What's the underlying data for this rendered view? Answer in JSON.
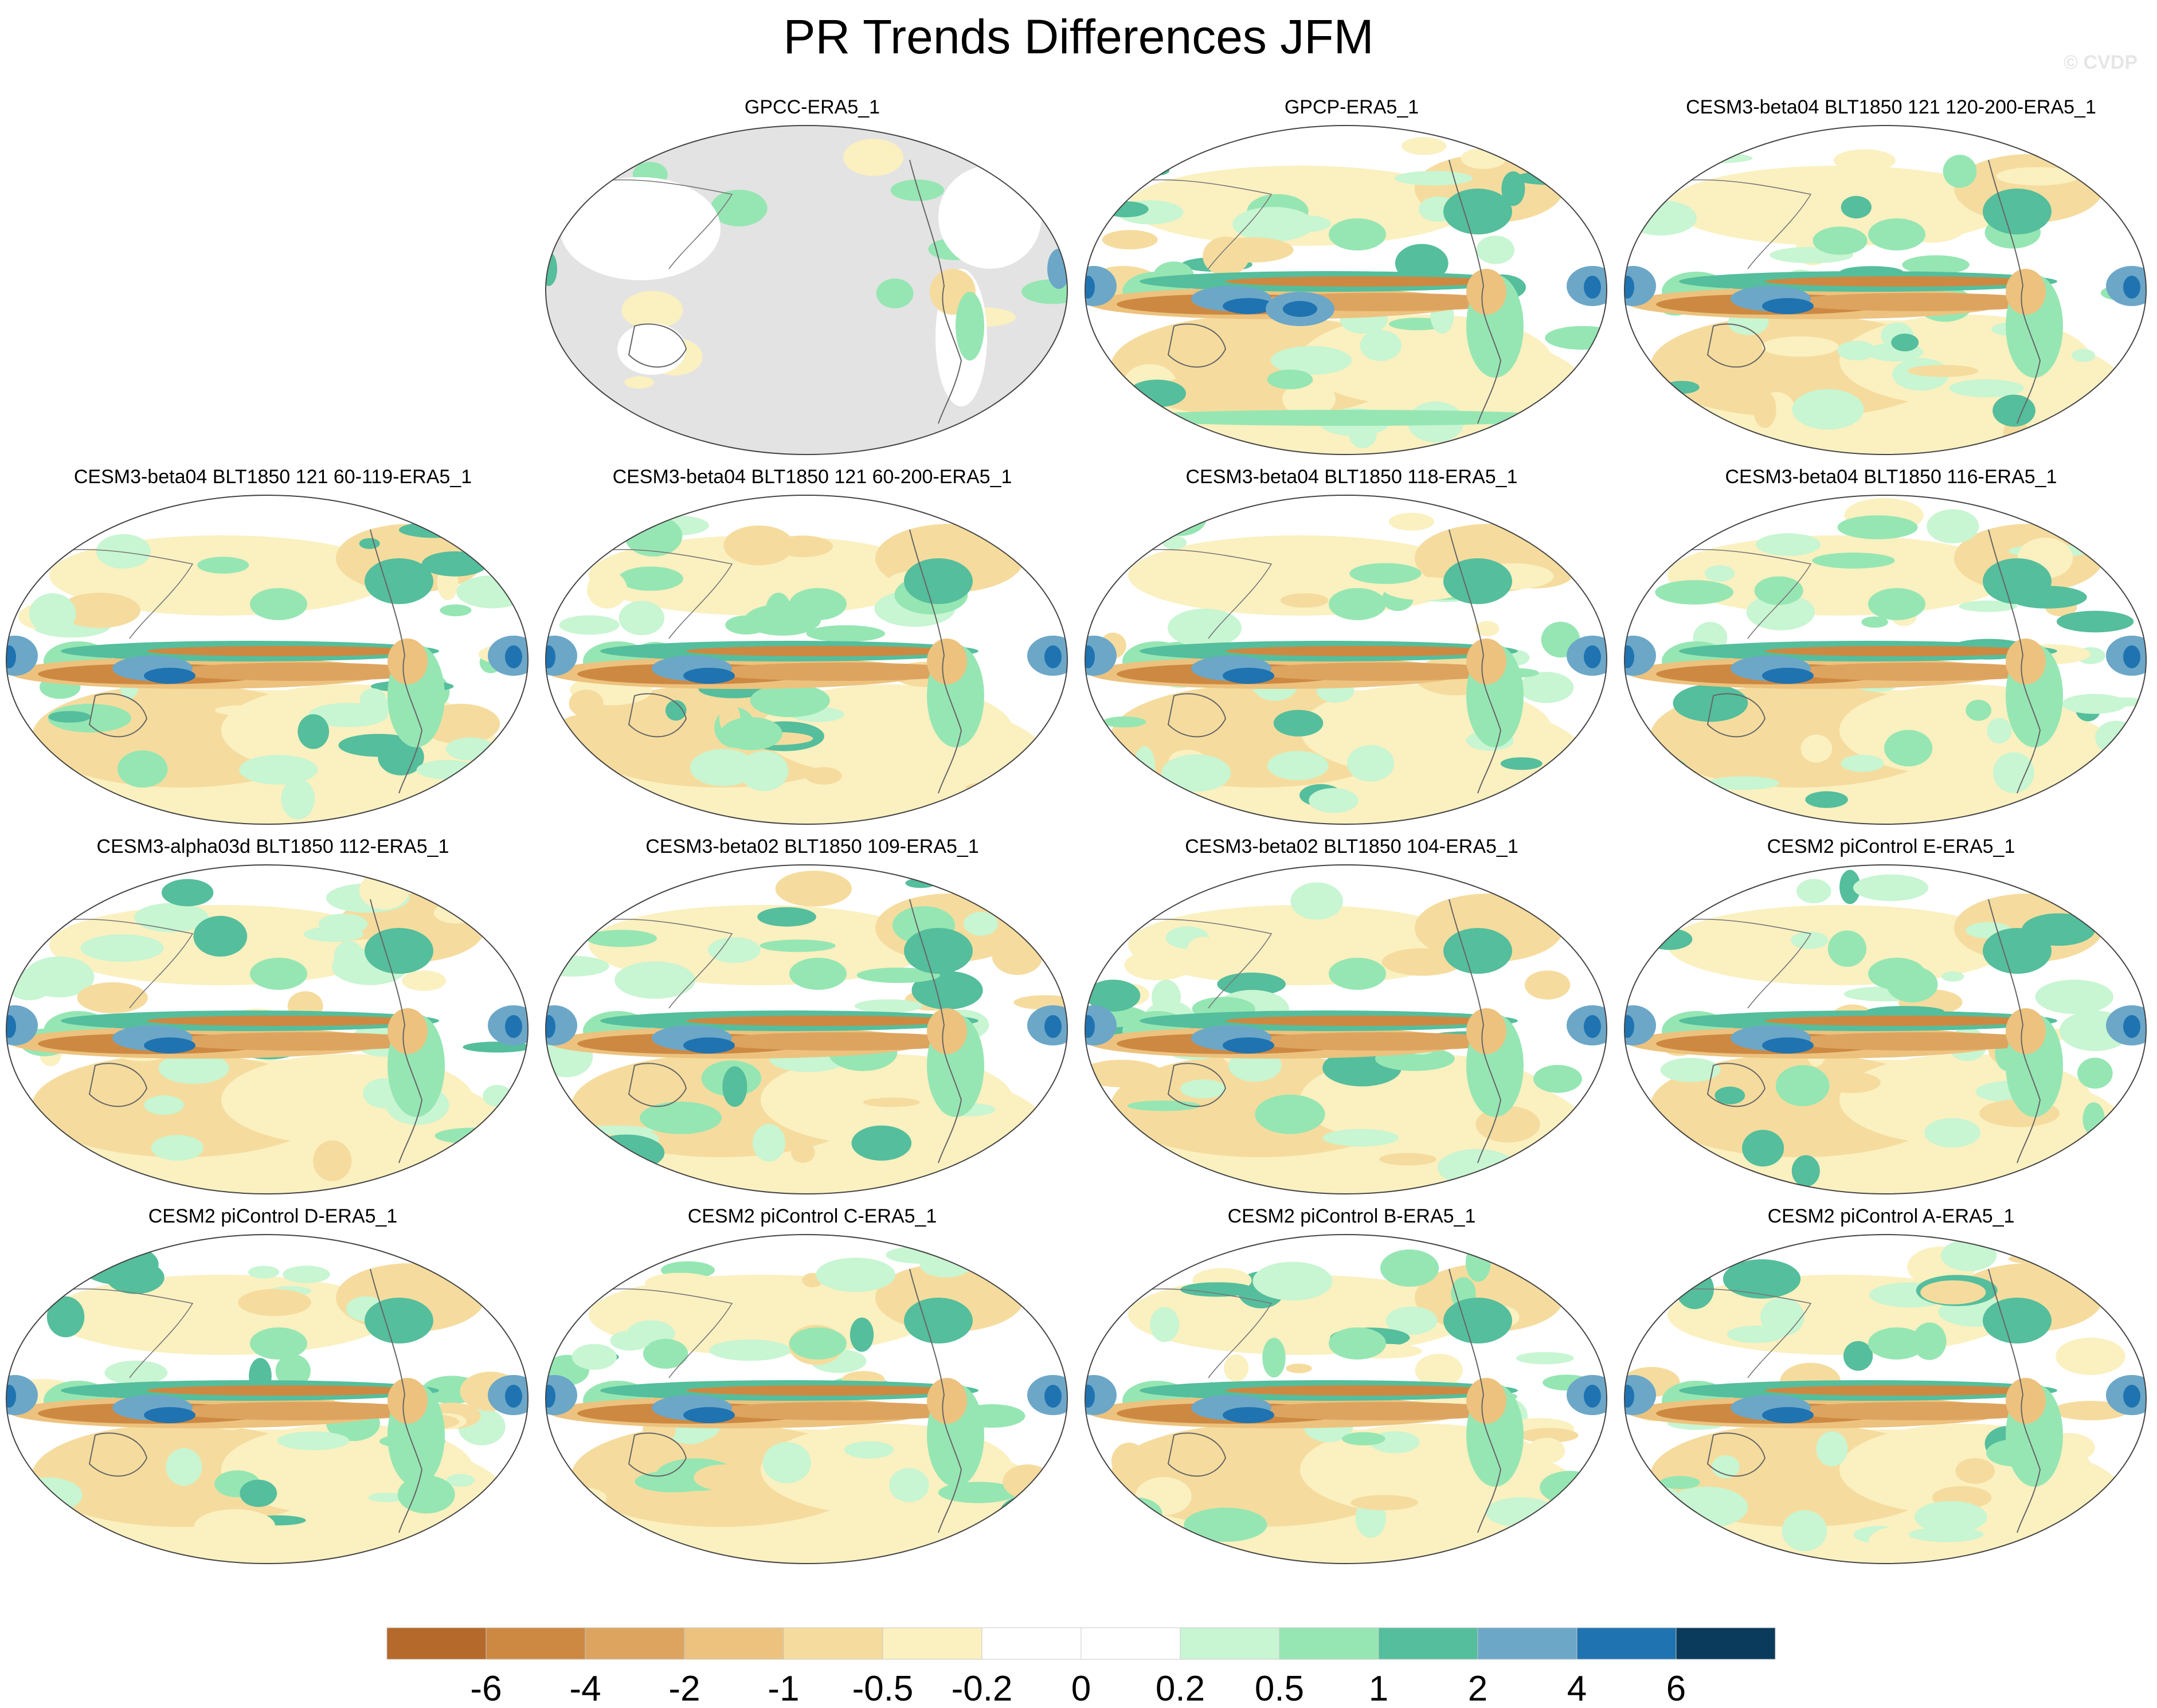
{
  "title": "PR Trends Differences JFM",
  "watermark": "© CVDP",
  "chart_data": {
    "type": "heatmap",
    "title": "PR Trends Differences JFM",
    "projection": "Robinson (Pacific-centered)",
    "panels": [
      {
        "label": "GPCC-ERA5_1",
        "land_only": true
      },
      {
        "label": "GPCP-ERA5_1",
        "land_only": false
      },
      {
        "label": "CESM3-beta04 BLT1850 121 120-200-ERA5_1",
        "land_only": false
      },
      {
        "label": "CESM3-beta04 BLT1850 121 60-119-ERA5_1",
        "land_only": false
      },
      {
        "label": "CESM3-beta04 BLT1850 121 60-200-ERA5_1",
        "land_only": false
      },
      {
        "label": "CESM3-beta04 BLT1850 118-ERA5_1",
        "land_only": false
      },
      {
        "label": "CESM3-beta04 BLT1850 116-ERA5_1",
        "land_only": false
      },
      {
        "label": "CESM3-alpha03d BLT1850 112-ERA5_1",
        "land_only": false
      },
      {
        "label": "CESM3-beta02 BLT1850 109-ERA5_1",
        "land_only": false
      },
      {
        "label": "CESM3-beta02 BLT1850 104-ERA5_1",
        "land_only": false
      },
      {
        "label": "CESM2 piControl E-ERA5_1",
        "land_only": false
      },
      {
        "label": "CESM2 piControl D-ERA5_1",
        "land_only": false
      },
      {
        "label": "CESM2 piControl C-ERA5_1",
        "land_only": false
      },
      {
        "label": "CESM2 piControl B-ERA5_1",
        "land_only": false
      },
      {
        "label": "CESM2 piControl A-ERA5_1",
        "land_only": false
      }
    ],
    "colorbar": {
      "levels": [
        "-6",
        "-4",
        "-2",
        "-1",
        "-0.5",
        "-0.2",
        "0",
        "0.2",
        "0.5",
        "1",
        "2",
        "4",
        "6"
      ],
      "colors": [
        "#b5692b",
        "#cd8942",
        "#dda460",
        "#ecc27e",
        "#f5dc9e",
        "#fbf0c0",
        "#ffffff",
        "#ffffff",
        "#c8f5d2",
        "#96e6b3",
        "#55be9c",
        "#6ca7c8",
        "#1f73b0",
        "#0a3a5c"
      ]
    },
    "missing_color": "#e3e3e3"
  }
}
